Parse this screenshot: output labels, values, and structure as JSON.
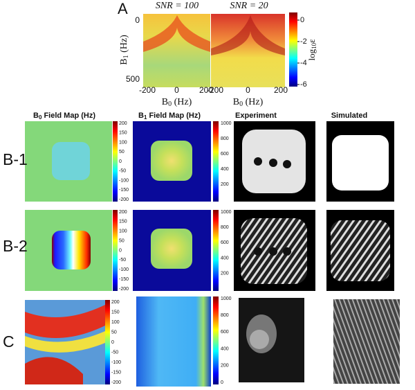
{
  "panel_a": {
    "label": "A",
    "titles": [
      "SNR = 100",
      "SNR = 20"
    ],
    "y_label": {
      "main": "B",
      "sub": "1",
      "rest": " (Hz)"
    },
    "y_ticks": [
      0,
      500
    ],
    "x_ticks": [
      [
        -200,
        0,
        200
      ],
      [
        -200,
        0,
        200
      ]
    ],
    "x_labels": [
      {
        "main": "B",
        "sub": "0",
        "rest": " (Hz)"
      },
      {
        "main": "B",
        "sub": "0",
        "rest": " (Hz)"
      }
    ],
    "colorbar_label": {
      "main": "log",
      "sub": "10",
      "rest": "ε"
    },
    "colorbar_ticks": [
      0,
      -2,
      -4,
      -6
    ]
  },
  "columns": [
    {
      "main": "B",
      "sub": "0",
      "rest": " Field Map (Hz)"
    },
    {
      "main": "B",
      "sub": "1",
      "rest": " Field Map (Hz)"
    },
    {
      "text": "Experiment"
    },
    {
      "text": "Simulated"
    }
  ],
  "rows": [
    {
      "label": "B-1",
      "b0_ticks": [
        200,
        150,
        100,
        50,
        0,
        -50,
        -100,
        -150,
        -200
      ],
      "b1_ticks": [
        1000,
        800,
        600,
        400,
        200
      ]
    },
    {
      "label": "B-2",
      "b0_ticks": [
        200,
        150,
        100,
        50,
        0,
        -50,
        -100,
        -150,
        -200
      ],
      "b1_ticks": [
        1000,
        800,
        600,
        400,
        200
      ]
    },
    {
      "label": "C",
      "b0_ticks": [
        200,
        150,
        100,
        50,
        0,
        -50,
        -100,
        -150,
        -200
      ],
      "b1_ticks": [
        1000,
        800,
        600,
        400,
        200,
        0
      ]
    }
  ]
}
